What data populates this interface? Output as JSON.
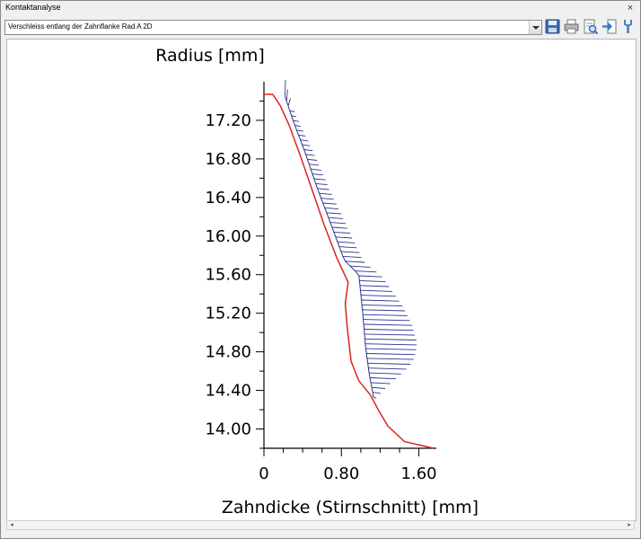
{
  "window": {
    "title": "Kontaktanalyse",
    "close_glyph": "×"
  },
  "toolbar": {
    "selected_view": "Verschleiss entlang der Zahnflanke Rad A 2D",
    "icons": [
      "save-icon",
      "print-icon",
      "print-preview-icon",
      "export-icon",
      "settings-icon"
    ]
  },
  "colors": {
    "profile": "#dd2222",
    "wear": "#2b3490",
    "axis": "#000000"
  },
  "chart_data": {
    "type": "line",
    "xlabel": "Zahndicke (Stirnschnitt) [mm]",
    "ylabel": "Radius [mm]",
    "xlim": [
      0,
      1.78
    ],
    "ylim": [
      13.8,
      17.6
    ],
    "x_ticks": [
      "0",
      "0.80",
      "1.60"
    ],
    "y_ticks": [
      "14.00",
      "14.40",
      "14.80",
      "15.20",
      "15.60",
      "16.00",
      "16.40",
      "16.80",
      "17.20"
    ],
    "series": [
      {
        "role": "profile",
        "points": [
          [
            0,
            17.47
          ],
          [
            0.09,
            17.47
          ],
          [
            0.17,
            17.35
          ],
          [
            0.26,
            17.15
          ],
          [
            0.37,
            16.85
          ],
          [
            0.49,
            16.5
          ],
          [
            0.62,
            16.12
          ],
          [
            0.75,
            15.78
          ],
          [
            0.87,
            15.52
          ],
          [
            0.84,
            15.3
          ],
          [
            0.86,
            15.05
          ],
          [
            0.9,
            14.7
          ],
          [
            0.98,
            14.5
          ],
          [
            1.1,
            14.35
          ],
          [
            1.18,
            14.2
          ],
          [
            1.28,
            14.03
          ],
          [
            1.45,
            13.87
          ],
          [
            1.75,
            13.8
          ]
        ]
      },
      {
        "role": "wear",
        "lengths": [
          0.03,
          0.03,
          0.04,
          0.05,
          0.05,
          0.06,
          0.06,
          0.07,
          0.07,
          0.08,
          0.08,
          0.09,
          0.09,
          0.1,
          0.1,
          0.11,
          0.11,
          0.12,
          0.12,
          0.12,
          0.13,
          0.13,
          0.14,
          0.14,
          0.15,
          0.15,
          0.16,
          0.16,
          0.17,
          0.17,
          0.18,
          0.18,
          0.19,
          0.19,
          0.2,
          0.21,
          0.22,
          0.24,
          0.27,
          0.3,
          0.33,
          0.36,
          0.39,
          0.42,
          0.44,
          0.46,
          0.48,
          0.5,
          0.51,
          0.52,
          0.53,
          0.53,
          0.52,
          0.5,
          0.48,
          0.44,
          0.39,
          0.33,
          0.27,
          0.2,
          0.14,
          0.08,
          0.03
        ]
      }
    ]
  }
}
